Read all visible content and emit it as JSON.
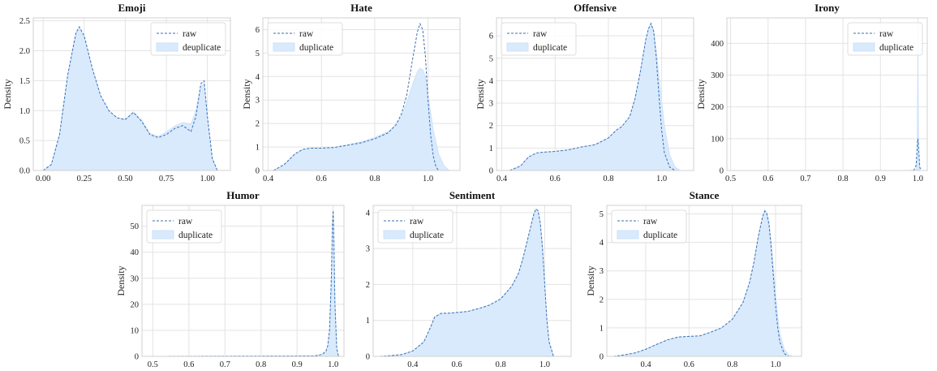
{
  "chart_data": [
    {
      "type": "area",
      "title": "Emoji",
      "ylabel": "Density",
      "xlabel": "",
      "xlim": [
        -0.06,
        1.14
      ],
      "ylim": [
        0,
        2.55
      ],
      "xticks": [
        0.0,
        0.25,
        0.5,
        0.75,
        1.0
      ],
      "xtick_labels": [
        "0.00",
        "0.25",
        "0.50",
        "0.75",
        "1.00"
      ],
      "yticks": [
        0.0,
        0.5,
        1.0,
        1.5,
        2.0,
        2.5
      ],
      "ytick_labels": [
        "0.0",
        "0.5",
        "1.0",
        "1.5",
        "2.0",
        "2.5"
      ],
      "grid": true,
      "legend_position": "top-right",
      "series": [
        {
          "name": "raw",
          "style": "dashed-line",
          "x": [
            0.0,
            0.05,
            0.1,
            0.15,
            0.2,
            0.22,
            0.25,
            0.3,
            0.35,
            0.4,
            0.45,
            0.5,
            0.55,
            0.6,
            0.65,
            0.7,
            0.75,
            0.8,
            0.85,
            0.9,
            0.93,
            0.96,
            0.98,
            1.0,
            1.03,
            1.06
          ],
          "values": [
            0.0,
            0.1,
            0.6,
            1.6,
            2.3,
            2.4,
            2.25,
            1.7,
            1.25,
            1.0,
            0.88,
            0.85,
            0.97,
            0.82,
            0.6,
            0.55,
            0.6,
            0.7,
            0.75,
            0.65,
            0.9,
            1.45,
            1.5,
            0.9,
            0.2,
            0.0
          ]
        },
        {
          "name": "deuplicate",
          "style": "filled-area",
          "x": [
            0.0,
            0.05,
            0.1,
            0.15,
            0.2,
            0.22,
            0.25,
            0.3,
            0.35,
            0.4,
            0.45,
            0.5,
            0.55,
            0.6,
            0.65,
            0.7,
            0.75,
            0.8,
            0.85,
            0.9,
            0.93,
            0.96,
            0.98,
            1.0,
            1.03,
            1.06
          ],
          "values": [
            0.0,
            0.1,
            0.6,
            1.6,
            2.3,
            2.38,
            2.23,
            1.7,
            1.25,
            1.0,
            0.88,
            0.86,
            0.98,
            0.84,
            0.62,
            0.57,
            0.64,
            0.74,
            0.8,
            0.78,
            1.0,
            1.4,
            1.45,
            0.9,
            0.2,
            0.0
          ]
        }
      ]
    },
    {
      "type": "area",
      "title": "Hate",
      "ylabel": "Density",
      "xlabel": "",
      "xlim": [
        0.38,
        1.12
      ],
      "ylim": [
        0,
        6.5
      ],
      "xticks": [
        0.4,
        0.6,
        0.8,
        1.0
      ],
      "xtick_labels": [
        "0.4",
        "0.6",
        "0.8",
        "1.0"
      ],
      "yticks": [
        0,
        1,
        2,
        3,
        4,
        5,
        6
      ],
      "ytick_labels": [
        "0",
        "1",
        "2",
        "3",
        "4",
        "5",
        "6"
      ],
      "grid": true,
      "legend_position": "top-left",
      "series": [
        {
          "name": "raw",
          "style": "dashed-line",
          "x": [
            0.42,
            0.46,
            0.5,
            0.53,
            0.56,
            0.6,
            0.65,
            0.7,
            0.75,
            0.8,
            0.85,
            0.88,
            0.9,
            0.92,
            0.94,
            0.96,
            0.97,
            0.98,
            0.99,
            1.0,
            1.01,
            1.02,
            1.03,
            1.04
          ],
          "values": [
            0.0,
            0.25,
            0.7,
            0.9,
            0.95,
            0.95,
            0.98,
            1.08,
            1.18,
            1.35,
            1.6,
            1.95,
            2.4,
            3.2,
            4.6,
            5.9,
            6.25,
            6.0,
            4.9,
            3.0,
            1.5,
            0.6,
            0.15,
            0.0
          ]
        },
        {
          "name": "duplicate",
          "style": "filled-area",
          "x": [
            0.42,
            0.46,
            0.5,
            0.53,
            0.56,
            0.6,
            0.65,
            0.7,
            0.75,
            0.8,
            0.85,
            0.88,
            0.9,
            0.92,
            0.94,
            0.96,
            0.97,
            0.98,
            0.99,
            1.0,
            1.02,
            1.04,
            1.06,
            1.08
          ],
          "values": [
            0.0,
            0.25,
            0.7,
            0.9,
            0.95,
            0.95,
            1.0,
            1.1,
            1.22,
            1.4,
            1.65,
            1.95,
            2.3,
            2.9,
            3.6,
            4.2,
            4.35,
            4.3,
            4.0,
            3.2,
            1.7,
            0.7,
            0.2,
            0.0
          ]
        }
      ]
    },
    {
      "type": "area",
      "title": "Offensive",
      "ylabel": "Density",
      "xlabel": "",
      "xlim": [
        0.38,
        1.12
      ],
      "ylim": [
        0,
        6.8
      ],
      "xticks": [
        0.4,
        0.6,
        0.8,
        1.0
      ],
      "xtick_labels": [
        "0.4",
        "0.6",
        "0.8",
        "1.0"
      ],
      "yticks": [
        0,
        1,
        2,
        3,
        4,
        5,
        6
      ],
      "ytick_labels": [
        "0",
        "1",
        "2",
        "3",
        "4",
        "5",
        "6"
      ],
      "grid": true,
      "legend_position": "top-left",
      "series": [
        {
          "name": "raw",
          "style": "dashed-line",
          "x": [
            0.43,
            0.47,
            0.5,
            0.53,
            0.56,
            0.6,
            0.65,
            0.7,
            0.75,
            0.8,
            0.83,
            0.85,
            0.88,
            0.9,
            0.92,
            0.94,
            0.95,
            0.96,
            0.97,
            0.98,
            0.99,
            1.0,
            1.01,
            1.03,
            1.05
          ],
          "values": [
            0.0,
            0.2,
            0.6,
            0.78,
            0.82,
            0.85,
            0.92,
            1.05,
            1.15,
            1.45,
            1.8,
            1.95,
            2.4,
            3.2,
            4.4,
            5.8,
            6.3,
            6.55,
            6.2,
            5.0,
            3.3,
            1.8,
            0.8,
            0.15,
            0.0
          ]
        },
        {
          "name": "duplicate",
          "style": "filled-area",
          "x": [
            0.43,
            0.47,
            0.5,
            0.53,
            0.56,
            0.6,
            0.65,
            0.7,
            0.75,
            0.8,
            0.83,
            0.85,
            0.88,
            0.9,
            0.92,
            0.94,
            0.95,
            0.96,
            0.97,
            0.98,
            0.99,
            1.0,
            1.01,
            1.03,
            1.05,
            1.07
          ],
          "values": [
            0.0,
            0.2,
            0.6,
            0.78,
            0.82,
            0.85,
            0.92,
            1.05,
            1.15,
            1.45,
            1.8,
            1.95,
            2.4,
            3.2,
            4.4,
            5.8,
            6.3,
            6.55,
            6.25,
            5.3,
            4.2,
            3.1,
            2.0,
            0.7,
            0.15,
            0.0
          ]
        }
      ]
    },
    {
      "type": "area",
      "title": "Irony",
      "ylabel": "Density",
      "xlabel": "",
      "xlim": [
        0.49,
        1.025
      ],
      "ylim": [
        0,
        480
      ],
      "xticks": [
        0.5,
        0.6,
        0.7,
        0.8,
        0.9,
        1.0
      ],
      "xtick_labels": [
        "0.5",
        "0.6",
        "0.7",
        "0.8",
        "0.9",
        "1.0"
      ],
      "yticks": [
        0,
        100,
        200,
        300,
        400
      ],
      "ytick_labels": [
        "0",
        "100",
        "200",
        "300",
        "400"
      ],
      "grid": true,
      "legend_position": "top-right",
      "series": [
        {
          "name": "raw",
          "style": "dashed-line",
          "x": [
            0.5,
            0.98,
            0.99,
            0.995,
            0.997,
            0.999,
            1.0,
            1.001,
            1.003,
            1.005,
            1.01
          ],
          "values": [
            0,
            0,
            2,
            15,
            50,
            90,
            100,
            90,
            50,
            10,
            0
          ]
        },
        {
          "name": "duplicate",
          "style": "filled-area",
          "x": [
            0.5,
            0.995,
            0.998,
            0.9995,
            1.0,
            1.0005,
            1.002,
            1.005
          ],
          "values": [
            0,
            0,
            40,
            300,
            460,
            300,
            40,
            0
          ]
        }
      ]
    },
    {
      "type": "area",
      "title": "Humor",
      "ylabel": "Density",
      "xlabel": "",
      "xlim": [
        0.47,
        1.03
      ],
      "ylim": [
        0,
        58
      ],
      "xticks": [
        0.5,
        0.6,
        0.7,
        0.8,
        0.9,
        1.0
      ],
      "xtick_labels": [
        "0.5",
        "0.6",
        "0.7",
        "0.8",
        "0.9",
        "1.0"
      ],
      "yticks": [
        0,
        10,
        20,
        30,
        40,
        50
      ],
      "ytick_labels": [
        "0",
        "10",
        "20",
        "30",
        "40",
        "50"
      ],
      "grid": true,
      "legend_position": "top-left",
      "series": [
        {
          "name": "raw",
          "style": "dashed-line",
          "x": [
            0.5,
            0.95,
            0.97,
            0.98,
            0.985,
            0.99,
            0.995,
            0.998,
            1.0,
            1.002,
            1.005,
            1.01,
            1.015
          ],
          "values": [
            0,
            0.2,
            0.8,
            2.0,
            4.0,
            10,
            30,
            50,
            56,
            45,
            20,
            3,
            0
          ]
        },
        {
          "name": "duplicate",
          "style": "filled-area",
          "x": [
            0.5,
            0.95,
            0.97,
            0.98,
            0.985,
            0.99,
            0.995,
            0.998,
            1.0,
            1.002,
            1.005,
            1.01,
            1.015
          ],
          "values": [
            0,
            0.2,
            0.8,
            2.0,
            4.0,
            10,
            30,
            50,
            55,
            45,
            20,
            3,
            0
          ]
        }
      ]
    },
    {
      "type": "area",
      "title": "Sentiment",
      "ylabel": "",
      "xlabel": "",
      "xlim": [
        0.22,
        1.12
      ],
      "ylim": [
        0,
        4.2
      ],
      "xticks": [
        0.4,
        0.6,
        0.8,
        1.0
      ],
      "xtick_labels": [
        "0.4",
        "0.6",
        "0.8",
        "1.0"
      ],
      "yticks": [
        0,
        1,
        2,
        3,
        4
      ],
      "ytick_labels": [
        "0",
        "1",
        "2",
        "3",
        "4"
      ],
      "grid": true,
      "legend_position": "top-left",
      "series": [
        {
          "name": "raw",
          "style": "dashed-line",
          "x": [
            0.25,
            0.3,
            0.35,
            0.4,
            0.45,
            0.48,
            0.5,
            0.53,
            0.56,
            0.6,
            0.65,
            0.7,
            0.75,
            0.8,
            0.85,
            0.88,
            0.9,
            0.92,
            0.94,
            0.95,
            0.96,
            0.97,
            0.98,
            0.99,
            1.0,
            1.01,
            1.02,
            1.04
          ],
          "values": [
            0,
            0.02,
            0.05,
            0.15,
            0.4,
            0.8,
            1.1,
            1.2,
            1.2,
            1.22,
            1.25,
            1.33,
            1.43,
            1.6,
            1.95,
            2.3,
            2.7,
            3.2,
            3.7,
            3.95,
            4.1,
            4.05,
            3.7,
            3.0,
            2.0,
            1.0,
            0.4,
            0.0
          ]
        },
        {
          "name": "duplicate",
          "style": "filled-area",
          "x": [
            0.25,
            0.3,
            0.35,
            0.4,
            0.45,
            0.48,
            0.5,
            0.53,
            0.56,
            0.6,
            0.65,
            0.7,
            0.75,
            0.8,
            0.85,
            0.88,
            0.9,
            0.92,
            0.94,
            0.95,
            0.96,
            0.97,
            0.98,
            0.99,
            1.0,
            1.01,
            1.02,
            1.04
          ],
          "values": [
            0,
            0.02,
            0.05,
            0.15,
            0.4,
            0.8,
            1.1,
            1.2,
            1.2,
            1.22,
            1.25,
            1.33,
            1.43,
            1.6,
            1.95,
            2.3,
            2.7,
            3.2,
            3.7,
            3.95,
            4.1,
            4.05,
            3.7,
            3.0,
            2.0,
            1.0,
            0.4,
            0.0
          ]
        }
      ]
    },
    {
      "type": "area",
      "title": "Stance",
      "ylabel": "Density",
      "xlabel": "",
      "xlim": [
        0.22,
        1.12
      ],
      "ylim": [
        0,
        5.3
      ],
      "xticks": [
        0.4,
        0.6,
        0.8,
        1.0
      ],
      "xtick_labels": [
        "0.4",
        "0.6",
        "0.8",
        "1.0"
      ],
      "yticks": [
        0,
        1,
        2,
        3,
        4,
        5
      ],
      "ytick_labels": [
        "0",
        "1",
        "2",
        "3",
        "4",
        "5"
      ],
      "grid": true,
      "legend_position": "top-left",
      "series": [
        {
          "name": "raw",
          "style": "dashed-line",
          "x": [
            0.25,
            0.3,
            0.35,
            0.4,
            0.45,
            0.5,
            0.55,
            0.6,
            0.65,
            0.7,
            0.75,
            0.8,
            0.85,
            0.88,
            0.9,
            0.92,
            0.94,
            0.95,
            0.96,
            0.97,
            0.98,
            0.99,
            1.0,
            1.01,
            1.02,
            1.04,
            1.06
          ],
          "values": [
            0,
            0.05,
            0.12,
            0.25,
            0.42,
            0.58,
            0.68,
            0.7,
            0.72,
            0.85,
            1.0,
            1.3,
            1.9,
            2.6,
            3.3,
            4.2,
            4.9,
            5.1,
            5.0,
            4.6,
            3.8,
            2.8,
            1.8,
            1.0,
            0.5,
            0.1,
            0.0
          ]
        },
        {
          "name": "duplicate",
          "style": "filled-area",
          "x": [
            0.25,
            0.3,
            0.35,
            0.4,
            0.45,
            0.5,
            0.55,
            0.6,
            0.65,
            0.7,
            0.75,
            0.8,
            0.85,
            0.88,
            0.9,
            0.92,
            0.94,
            0.95,
            0.96,
            0.97,
            0.98,
            0.99,
            1.0,
            1.01,
            1.02,
            1.04,
            1.06,
            1.08
          ],
          "values": [
            0,
            0.05,
            0.12,
            0.25,
            0.42,
            0.58,
            0.68,
            0.7,
            0.72,
            0.85,
            1.0,
            1.3,
            1.9,
            2.6,
            3.3,
            4.2,
            4.9,
            5.15,
            5.05,
            4.7,
            4.0,
            3.1,
            2.2,
            1.4,
            0.8,
            0.25,
            0.05,
            0.0
          ]
        }
      ]
    }
  ],
  "colors": {
    "line": "#3a6fb3",
    "fill": "#d9eafc",
    "fill_stroke": "#cde2fa",
    "grid": "#e3e3e3",
    "frame": "#d0d0d0"
  }
}
